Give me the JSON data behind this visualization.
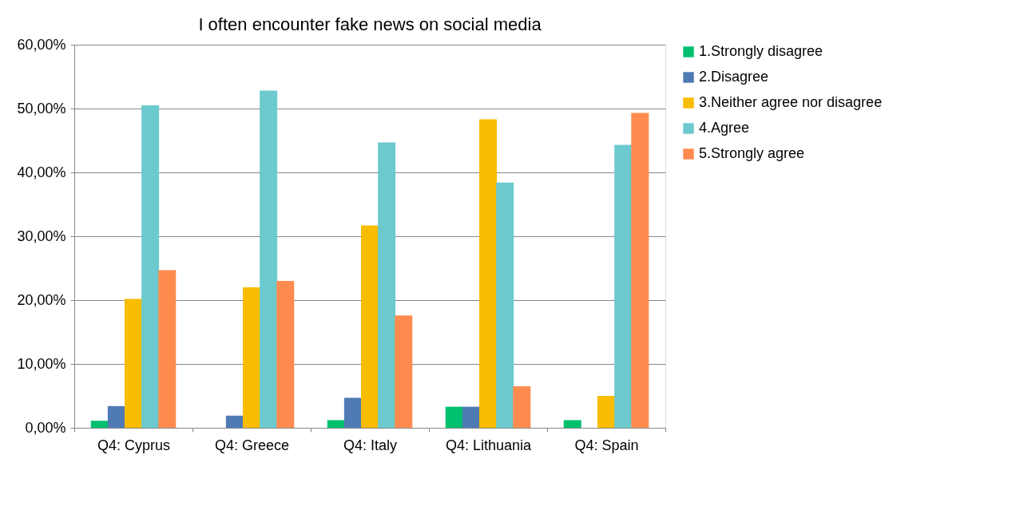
{
  "chart_data": {
    "type": "bar",
    "title": "I often encounter fake news on social media",
    "categories": [
      "Q4: Cyprus",
      "Q4: Greece",
      "Q4: Italy",
      "Q4: Lithuania",
      "Q4: Spain"
    ],
    "series": [
      {
        "name": "1.Strongly disagree",
        "color": "#00bf6f",
        "values": [
          1.1,
          0,
          1.2,
          3.3,
          1.2
        ]
      },
      {
        "name": "2.Disagree",
        "color": "#4f7ab3",
        "values": [
          3.4,
          1.9,
          4.7,
          3.3,
          0
        ]
      },
      {
        "name": "3.Neither agree nor disagree",
        "color": "#f8bc00",
        "values": [
          20.2,
          22.0,
          31.7,
          48.3,
          5.0
        ]
      },
      {
        "name": "4.Agree",
        "color": "#6ccacf",
        "values": [
          50.5,
          52.8,
          44.7,
          38.4,
          44.3
        ]
      },
      {
        "name": "5.Strongly agree",
        "color": "#ff8b4f",
        "values": [
          24.7,
          23.0,
          17.6,
          6.5,
          49.3
        ]
      }
    ],
    "ylim": [
      0,
      60
    ],
    "yticks": [
      {
        "value": 0,
        "label": "0,00%"
      },
      {
        "value": 10,
        "label": "10,00%"
      },
      {
        "value": 20,
        "label": "20,00%"
      },
      {
        "value": 30,
        "label": "30,00%"
      },
      {
        "value": 40,
        "label": "40,00%"
      },
      {
        "value": 50,
        "label": "50,00%"
      },
      {
        "value": 60,
        "label": "60,00%"
      }
    ],
    "grid": "y",
    "legend": "right"
  }
}
